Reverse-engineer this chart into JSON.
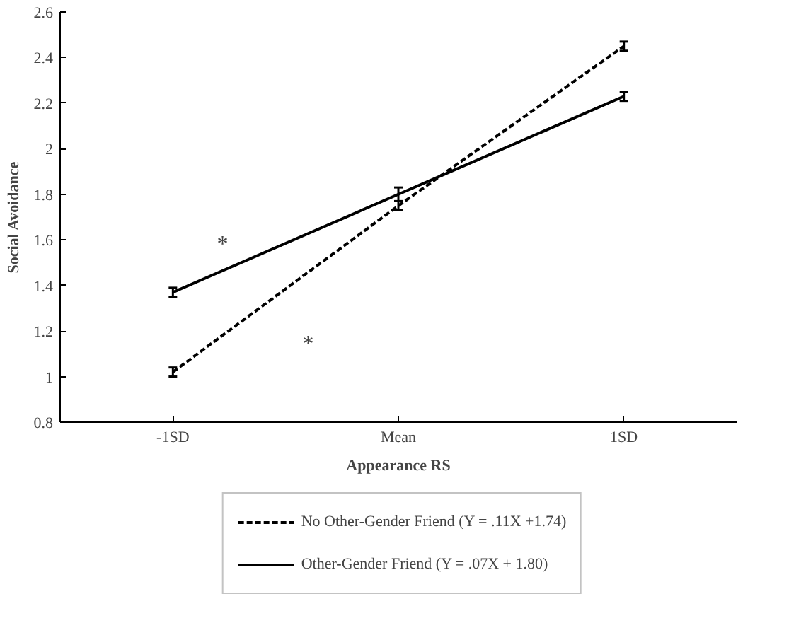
{
  "chart_data": {
    "type": "line",
    "xlabel": "Appearance RS",
    "ylabel": "Social Avoidance",
    "categories": [
      "-1SD",
      "Mean",
      "1SD"
    ],
    "series": [
      {
        "name": "No Other-Gender Friend (Y = .11X +1.74)",
        "color": "#000000",
        "values": [
          1.02,
          1.75,
          2.45
        ],
        "errors": [
          0.02,
          0.02,
          0.02
        ],
        "line_style": "dashed"
      },
      {
        "name": "Other-Gender Friend (Y = .07X + 1.80)",
        "color": "#000000",
        "values": [
          1.37,
          1.8,
          2.23
        ],
        "errors": [
          0.02,
          0.03,
          0.02
        ],
        "line_style": "solid"
      }
    ],
    "ylim": [
      0.8,
      2.6
    ],
    "yticks": [
      0.8,
      1,
      1.2,
      1.4,
      1.6,
      1.8,
      2,
      2.2,
      2.4,
      2.6
    ],
    "annotations": [
      "*",
      "*"
    ],
    "grid": false,
    "legend": "bottom",
    "marker": "none"
  }
}
